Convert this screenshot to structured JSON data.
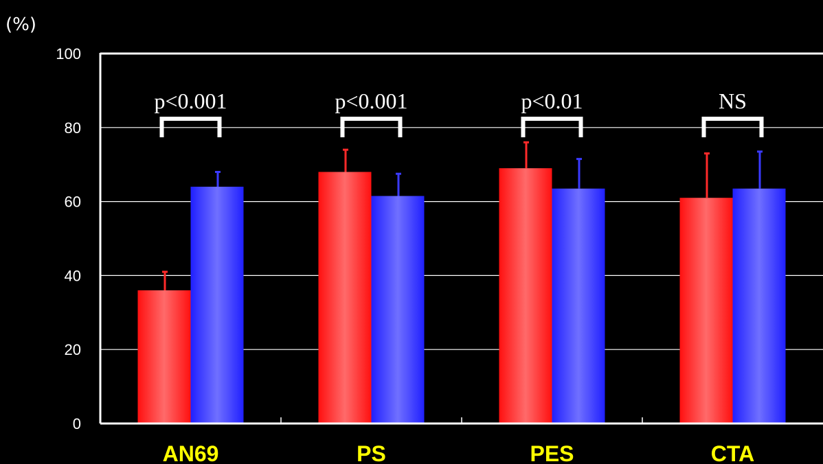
{
  "chart_data": {
    "type": "bar",
    "ylabel": "(%)",
    "ylim": [
      0,
      100
    ],
    "yticks": [
      "0",
      "20",
      "40",
      "60",
      "80",
      "100"
    ],
    "grid": true,
    "categories": [
      "AN69",
      "PS",
      "PES",
      "CTA"
    ],
    "series": [
      {
        "color": "#ff2a2a",
        "values": [
          36,
          68,
          69,
          61
        ],
        "errors": [
          5,
          6,
          7,
          12
        ]
      },
      {
        "color": "#3a3aff",
        "values": [
          64,
          61.5,
          63.5,
          63.5
        ],
        "errors": [
          4,
          6,
          8,
          10
        ]
      }
    ],
    "annotations": [
      "p<0.001",
      "p<0.001",
      "p<0.01",
      "NS"
    ],
    "colors": {
      "background": "#000000",
      "axis": "#ffffff",
      "category_label": "#ffff00"
    }
  }
}
